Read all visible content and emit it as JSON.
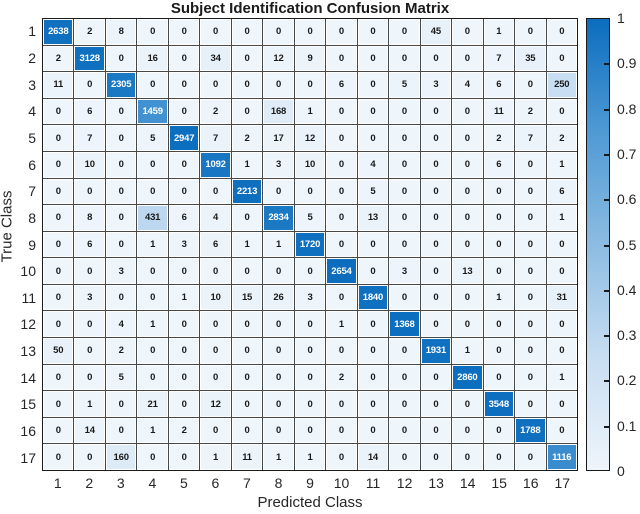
{
  "chart_data": {
    "type": "heatmap",
    "title": "Subject Identification Confusion Matrix",
    "xlabel": "Predicted Class",
    "ylabel": "True Class",
    "x_categories": [
      "1",
      "2",
      "3",
      "4",
      "5",
      "6",
      "7",
      "8",
      "9",
      "10",
      "11",
      "12",
      "13",
      "14",
      "15",
      "16",
      "17"
    ],
    "y_categories": [
      "1",
      "2",
      "3",
      "4",
      "5",
      "6",
      "7",
      "8",
      "9",
      "10",
      "11",
      "12",
      "13",
      "14",
      "15",
      "16",
      "17"
    ],
    "matrix": [
      [
        2638,
        2,
        8,
        0,
        0,
        0,
        0,
        0,
        0,
        0,
        0,
        0,
        45,
        0,
        1,
        0,
        0
      ],
      [
        2,
        3128,
        0,
        16,
        0,
        34,
        0,
        12,
        9,
        0,
        0,
        0,
        0,
        0,
        7,
        35,
        0
      ],
      [
        11,
        0,
        2305,
        0,
        0,
        0,
        0,
        0,
        0,
        6,
        0,
        5,
        3,
        4,
        6,
        0,
        250
      ],
      [
        0,
        6,
        0,
        1459,
        0,
        2,
        0,
        168,
        1,
        0,
        0,
        0,
        0,
        0,
        11,
        2,
        0
      ],
      [
        0,
        7,
        0,
        5,
        2947,
        7,
        2,
        17,
        12,
        0,
        0,
        0,
        0,
        0,
        2,
        7,
        2
      ],
      [
        0,
        10,
        0,
        0,
        0,
        1092,
        1,
        3,
        10,
        0,
        4,
        0,
        0,
        0,
        6,
        0,
        1
      ],
      [
        0,
        0,
        0,
        0,
        0,
        0,
        2213,
        0,
        0,
        0,
        5,
        0,
        0,
        0,
        0,
        0,
        6
      ],
      [
        0,
        8,
        0,
        431,
        6,
        4,
        0,
        2834,
        5,
        0,
        13,
        0,
        0,
        0,
        0,
        0,
        1
      ],
      [
        0,
        6,
        0,
        1,
        3,
        6,
        1,
        1,
        1720,
        0,
        0,
        0,
        0,
        0,
        0,
        0,
        0
      ],
      [
        0,
        0,
        3,
        0,
        0,
        0,
        0,
        0,
        0,
        2654,
        0,
        3,
        0,
        13,
        0,
        0,
        0
      ],
      [
        0,
        3,
        0,
        0,
        1,
        10,
        15,
        26,
        3,
        0,
        1840,
        0,
        0,
        0,
        1,
        0,
        31
      ],
      [
        0,
        0,
        4,
        1,
        0,
        0,
        0,
        0,
        0,
        1,
        0,
        1368,
        0,
        0,
        0,
        0,
        0
      ],
      [
        50,
        0,
        2,
        0,
        0,
        0,
        0,
        0,
        0,
        0,
        0,
        0,
        1931,
        1,
        0,
        0,
        0
      ],
      [
        0,
        0,
        5,
        0,
        0,
        0,
        0,
        0,
        0,
        2,
        0,
        0,
        0,
        2860,
        0,
        0,
        1
      ],
      [
        0,
        1,
        0,
        21,
        0,
        12,
        0,
        0,
        0,
        0,
        0,
        0,
        0,
        0,
        3548,
        0,
        0
      ],
      [
        0,
        14,
        0,
        1,
        2,
        0,
        0,
        0,
        0,
        0,
        0,
        0,
        0,
        0,
        0,
        1788,
        0
      ],
      [
        0,
        0,
        160,
        0,
        0,
        1,
        11,
        1,
        1,
        0,
        14,
        0,
        0,
        0,
        0,
        0,
        1116
      ]
    ],
    "color_scale": "column-normalized",
    "colorbar": {
      "position": "right",
      "min": 0,
      "max": 1,
      "tick_labels": [
        "1",
        "0.9",
        "0.8",
        "0.7",
        "0.6",
        "0.5",
        "0.4",
        "0.3",
        "0.2",
        "0.1",
        "0"
      ],
      "tick_values": [
        1,
        0.9,
        0.8,
        0.7,
        0.6,
        0.5,
        0.4,
        0.3,
        0.2,
        0.1,
        0
      ]
    },
    "colors": {
      "colormap_low": "#eef5fb",
      "colormap_q1": "#c8def2",
      "colormap_mid": "#8cbce2",
      "colormap_q3": "#4f9ad4",
      "colormap_high": "#0b6dbe",
      "grid_line": "#474747",
      "axes_border": "#1a1a1a",
      "cell_text_dark": "#1a1a1a",
      "cell_text_light": "#ffffff",
      "tick_text": "#262626"
    },
    "grid": true,
    "legend": false
  }
}
